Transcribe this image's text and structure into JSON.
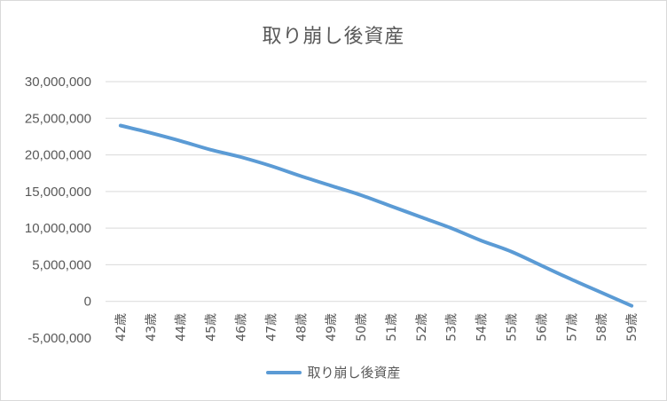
{
  "chart_data": {
    "type": "line",
    "title": "取り崩し後資産",
    "categories": [
      "42歳",
      "43歳",
      "44歳",
      "45歳",
      "46歳",
      "47歳",
      "48歳",
      "49歳",
      "50歳",
      "51歳",
      "52歳",
      "53歳",
      "54歳",
      "55歳",
      "56歳",
      "57歳",
      "58歳",
      "59歳"
    ],
    "series": [
      {
        "name": "取り崩し後資産",
        "color": "#5b9bd5",
        "values": [
          24000000,
          23000000,
          21900000,
          20700000,
          19700000,
          18500000,
          17100000,
          15800000,
          14500000,
          13000000,
          11500000,
          10000000,
          8300000,
          6800000,
          4900000,
          3000000,
          1200000,
          -600000
        ]
      }
    ],
    "y_ticks": [
      30000000,
      25000000,
      20000000,
      15000000,
      10000000,
      5000000,
      0,
      -5000000
    ],
    "y_tick_labels": [
      "30,000,000",
      "25,000,000",
      "20,000,000",
      "15,000,000",
      "10,000,000",
      "5,000,000",
      "0",
      "-5,000,000"
    ],
    "negative_tick_color": "#ff0000",
    "ylim": [
      -5000000,
      30000000
    ],
    "grid": true,
    "legend_position": "bottom",
    "xlabel": "",
    "ylabel": ""
  }
}
